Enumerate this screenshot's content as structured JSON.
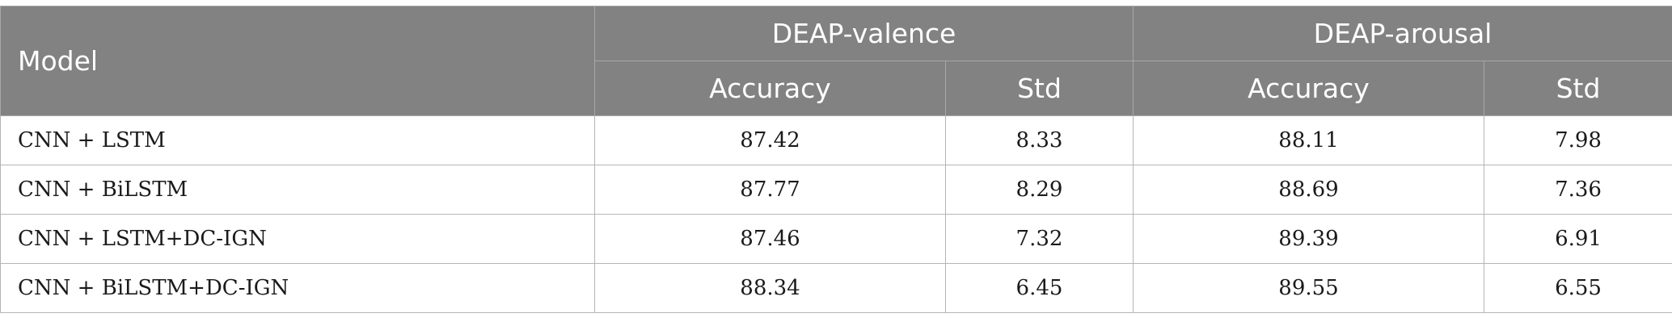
{
  "header": {
    "model": "Model",
    "group1": "DEAP-valence",
    "group2": "DEAP-arousal",
    "sub": [
      "Accuracy",
      "Std",
      "Accuracy",
      "Std"
    ]
  },
  "rows": [
    {
      "model": "CNN + LSTM",
      "v_acc": "87.42",
      "v_std": "8.33",
      "a_acc": "88.11",
      "a_std": "7.98"
    },
    {
      "model": "CNN + BiLSTM",
      "v_acc": "87.77",
      "v_std": "8.29",
      "a_acc": "88.69",
      "a_std": "7.36"
    },
    {
      "model": "CNN + LSTM+DC-IGN",
      "v_acc": "87.46",
      "v_std": "7.32",
      "a_acc": "89.39",
      "a_std": "6.91"
    },
    {
      "model": "CNN + BiLSTM+DC-IGN",
      "v_acc": "88.34",
      "v_std": "6.45",
      "a_acc": "89.55",
      "a_std": "6.55"
    }
  ]
}
